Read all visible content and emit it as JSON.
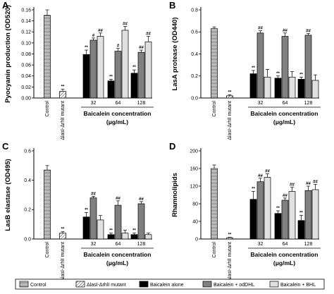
{
  "legend": {
    "items": [
      {
        "key": "control",
        "label": "Control"
      },
      {
        "key": "mutant",
        "label": "ΔlasI-ΔrhlI mutant"
      },
      {
        "key": "alone",
        "label": "Baicalein alone"
      },
      {
        "key": "oddhl",
        "label": "Baicalein + odDHL"
      },
      {
        "key": "bhl",
        "label": "Baicalein + BHL"
      }
    ]
  },
  "colors": {
    "control": "#ffffff",
    "mutant": "#ffffff",
    "alone": "#000000",
    "oddhl": "#808080",
    "bhl": "#e0e0e0"
  },
  "chart_data": [
    {
      "type": "bar",
      "panel": "A",
      "ylabel": "Pyocyanin production (OD520)",
      "yticks": [
        "0.00",
        "0.02",
        "0.04",
        "0.06",
        "0.08",
        "0.10",
        "0.12",
        "0.14",
        "0.16"
      ],
      "ylim": [
        0,
        0.16
      ],
      "control_label": "Control",
      "mutant_label": "ΔlasI-ΔrhlI mutant",
      "xlabel": "Baicalein concentration (μg/mL)",
      "xlabel_line1": "Baicalein concentration",
      "xlabel_line2": "(μg/mL)",
      "categories": [
        "32",
        "64",
        "128"
      ],
      "control": {
        "value": 0.15,
        "err": 0.01
      },
      "mutant": {
        "value": 0.012,
        "err": 0.004,
        "sig": "**"
      },
      "series": [
        {
          "key": "alone",
          "values": [
            0.079,
            0.031,
            0.045
          ],
          "errors": [
            0.008,
            0.003,
            0.006
          ],
          "sig": [
            "**",
            "**",
            "**"
          ]
        },
        {
          "key": "oddhl",
          "values": [
            0.105,
            0.085,
            0.083
          ],
          "errors": [
            0.004,
            0.005,
            0.004
          ],
          "sig": [
            "#",
            "#",
            "##"
          ]
        },
        {
          "key": "bhl",
          "values": [
            0.112,
            0.123,
            0.102
          ],
          "errors": [
            0.006,
            0.007,
            0.01
          ],
          "sig": [
            "##",
            "##",
            "##"
          ]
        }
      ]
    },
    {
      "type": "bar",
      "panel": "B",
      "ylabel": "LasA protease (OD440)",
      "yticks": [
        "0.0",
        "0.2",
        "0.4",
        "0.6",
        "0.8"
      ],
      "ylim": [
        0,
        0.8
      ],
      "control_label": "Control",
      "mutant_label": "ΔlasI-ΔrhlI mutant",
      "xlabel": "Baicalein concentration (μg/mL)",
      "xlabel_line1": "Baicalein concentration",
      "xlabel_line2": "(μg/mL)",
      "categories": [
        "32",
        "64",
        "128"
      ],
      "control": {
        "value": 0.63,
        "err": 0.015
      },
      "mutant": {
        "value": 0.02,
        "err": 0.01,
        "sig": "**"
      },
      "series": [
        {
          "key": "alone",
          "values": [
            0.22,
            0.18,
            0.17
          ],
          "errors": [
            0.03,
            0.02,
            0.02
          ],
          "sig": [
            "**",
            "**",
            "**"
          ]
        },
        {
          "key": "oddhl",
          "values": [
            0.59,
            0.56,
            0.57
          ],
          "errors": [
            0.02,
            0.03,
            0.015
          ],
          "sig": [
            "##",
            "##",
            "##"
          ]
        },
        {
          "key": "bhl",
          "values": [
            0.19,
            0.19,
            0.16
          ],
          "errors": [
            0.07,
            0.05,
            0.05
          ],
          "sig": [
            "",
            "",
            ""
          ]
        }
      ]
    },
    {
      "type": "bar",
      "panel": "C",
      "ylabel": "LasB elastase (OD495)",
      "yticks": [
        "0.0",
        "0.2",
        "0.4",
        "0.6"
      ],
      "ylim": [
        0,
        0.6
      ],
      "control_label": "Control",
      "mutant_label": "ΔlasI-ΔrhlI mutant",
      "xlabel": "Baicalein concentration (μg/mL)",
      "xlabel_line1": "Baicalein concentration",
      "xlabel_line2": "(μg/mL)",
      "categories": [
        "32",
        "64",
        "128"
      ],
      "control": {
        "value": 0.47,
        "err": 0.03
      },
      "mutant": {
        "value": 0.04,
        "err": 0.01,
        "sig": "**"
      },
      "series": [
        {
          "key": "alone",
          "values": [
            0.15,
            0.03,
            0.03
          ],
          "errors": [
            0.03,
            0.01,
            0.01
          ],
          "sig": [
            "**",
            "**",
            "**"
          ]
        },
        {
          "key": "oddhl",
          "values": [
            0.28,
            0.23,
            0.24
          ],
          "errors": [
            0.01,
            0.03,
            0.015
          ],
          "sig": [
            "##",
            "##",
            "##"
          ]
        },
        {
          "key": "bhl",
          "values": [
            0.13,
            0.04,
            0.03
          ],
          "errors": [
            0.03,
            0.02,
            0.01
          ],
          "sig": [
            "",
            "",
            ""
          ]
        }
      ]
    },
    {
      "type": "bar",
      "panel": "D",
      "ylabel": "Rhamnolipids",
      "yticks": [
        "0",
        "40",
        "80",
        "120",
        "160",
        "200"
      ],
      "ylim": [
        0,
        200
      ],
      "control_label": "Control",
      "mutant_label": "ΔlasI-ΔrhlI mutant",
      "xlabel": "Baicalein concentration (μg/mL)",
      "xlabel_line1": "Baicalein concentration",
      "xlabel_line2": "(μg/mL)",
      "categories": [
        "32",
        "64",
        "128"
      ],
      "control": {
        "value": 160,
        "err": 8
      },
      "mutant": {
        "value": 3,
        "err": 1,
        "sig": "**"
      },
      "series": [
        {
          "key": "alone",
          "values": [
            90,
            58,
            42
          ],
          "errors": [
            18,
            6,
            12
          ],
          "sig": [
            "**",
            "**",
            "**"
          ]
        },
        {
          "key": "oddhl",
          "values": [
            130,
            88,
            110
          ],
          "errors": [
            8,
            5,
            10
          ],
          "sig": [
            "##",
            "##",
            "##"
          ]
        },
        {
          "key": "bhl",
          "values": [
            140,
            108,
            112
          ],
          "errors": [
            8,
            10,
            12
          ],
          "sig": [
            "##",
            "##",
            "##"
          ]
        }
      ]
    }
  ]
}
